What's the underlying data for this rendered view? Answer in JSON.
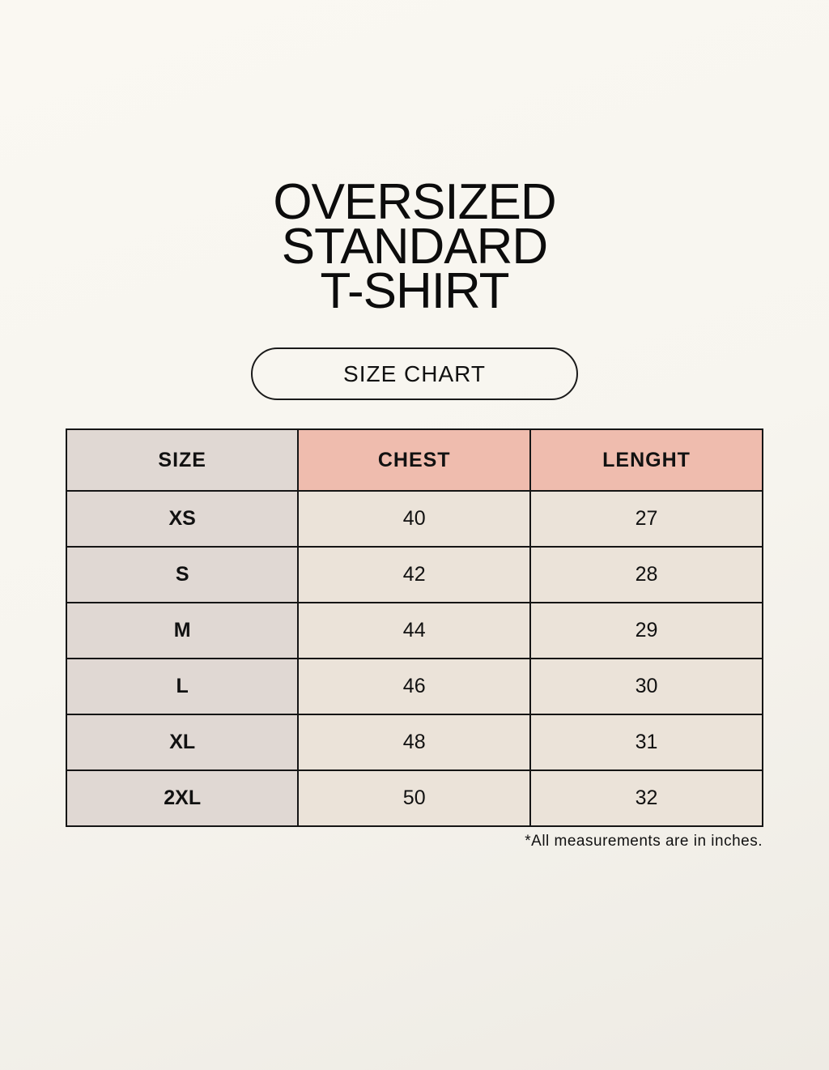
{
  "title_lines": [
    "OVERSIZED",
    "STANDARD",
    "T-SHIRT"
  ],
  "badge": "SIZE CHART",
  "colors": {
    "size_column": "#e0d8d3",
    "header_accent": "#efbcae",
    "value_cells": "#ebe3d9",
    "background": "#f9f7f1"
  },
  "table": {
    "headers": [
      "SIZE",
      "CHEST",
      "LENGHT"
    ],
    "rows": [
      [
        "XS",
        "40",
        "27"
      ],
      [
        "S",
        "42",
        "28"
      ],
      [
        "M",
        "44",
        "29"
      ],
      [
        "L",
        "46",
        "30"
      ],
      [
        "XL",
        "48",
        "31"
      ],
      [
        "2XL",
        "50",
        "32"
      ]
    ]
  },
  "note": "*All measurements are in inches."
}
